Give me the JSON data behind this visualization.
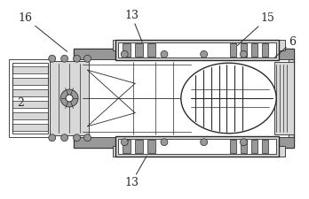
{
  "bg_color": "#ffffff",
  "line_color": "#2a2a2a",
  "gray_fill": "#b0b0b0",
  "light_gray": "#d8d8d8",
  "mid_gray": "#989898",
  "label_fontsize": 9,
  "figsize": [
    3.48,
    2.25
  ],
  "dpi": 100
}
